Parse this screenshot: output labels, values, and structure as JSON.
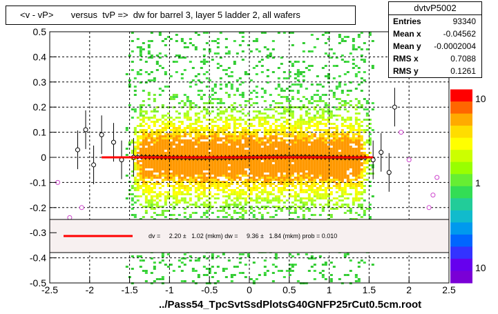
{
  "title": "<v - vP>       versus  tvP =>  dw for barrel 3, layer 5 ladder 2, all wafers",
  "stats": {
    "name": "dvtvP5002",
    "rows": [
      {
        "label": "Entries",
        "value": "93340"
      },
      {
        "label": "Mean x",
        "value": "-0.04562"
      },
      {
        "label": "Mean y",
        "value": "-0.0002004"
      },
      {
        "label": "RMS x",
        "value": "0.7088"
      },
      {
        "label": "RMS y",
        "value": "0.1261"
      }
    ]
  },
  "fit_legend": "dv =     2.20 ±   1.02 (mkm) dw =     9.36 ±   1.84 (mkm) prob = 0.010",
  "xlabel": "../Pass54_TpcSvtSsdPlotsG40GNFP25rCut0.5cm.root",
  "colors": {
    "fit_line": "#ff0000",
    "profile_marker": "#000000",
    "outlier_marker": "#cc44cc"
  },
  "chart_data": {
    "type": "heatmap",
    "xlim": [
      -2.5,
      2.5
    ],
    "ylim": [
      -0.5,
      0.5
    ],
    "x_ticks": [
      -2.5,
      -2,
      -1.5,
      -1,
      -0.5,
      0,
      0.5,
      1,
      1.5,
      2,
      2.5
    ],
    "y_ticks": [
      -0.5,
      -0.4,
      -0.3,
      -0.2,
      -0.1,
      0,
      0.1,
      0.2,
      0.3,
      0.4,
      0.5
    ],
    "grid": true,
    "z_scale": "log",
    "z_tick_labels": [
      "10",
      "1",
      "10"
    ],
    "fit_line": {
      "x": [
        -1.85,
        1.55
      ],
      "y": [
        0.0,
        0.0
      ]
    },
    "profile_points": [
      {
        "x": -2.15,
        "y": 0.03
      },
      {
        "x": -2.05,
        "y": 0.11
      },
      {
        "x": -1.95,
        "y": -0.03
      },
      {
        "x": -1.85,
        "y": 0.09
      },
      {
        "x": -1.7,
        "y": 0.06
      },
      {
        "x": -1.6,
        "y": -0.01
      },
      {
        "x": -1.45,
        "y": 0.0
      },
      {
        "x": 1.55,
        "y": -0.01
      },
      {
        "x": 1.65,
        "y": 0.02
      },
      {
        "x": 1.75,
        "y": -0.06
      },
      {
        "x": 1.82,
        "y": 0.2
      }
    ],
    "outlier_points": [
      {
        "x": -2.4,
        "y": -0.1
      },
      {
        "x": -2.25,
        "y": -0.24
      },
      {
        "x": -2.1,
        "y": -0.2
      },
      {
        "x": 1.9,
        "y": 0.1
      },
      {
        "x": 2.0,
        "y": -0.01
      },
      {
        "x": 2.25,
        "y": -0.2
      },
      {
        "x": 2.3,
        "y": -0.15
      },
      {
        "x": 2.35,
        "y": -0.08
      }
    ]
  }
}
